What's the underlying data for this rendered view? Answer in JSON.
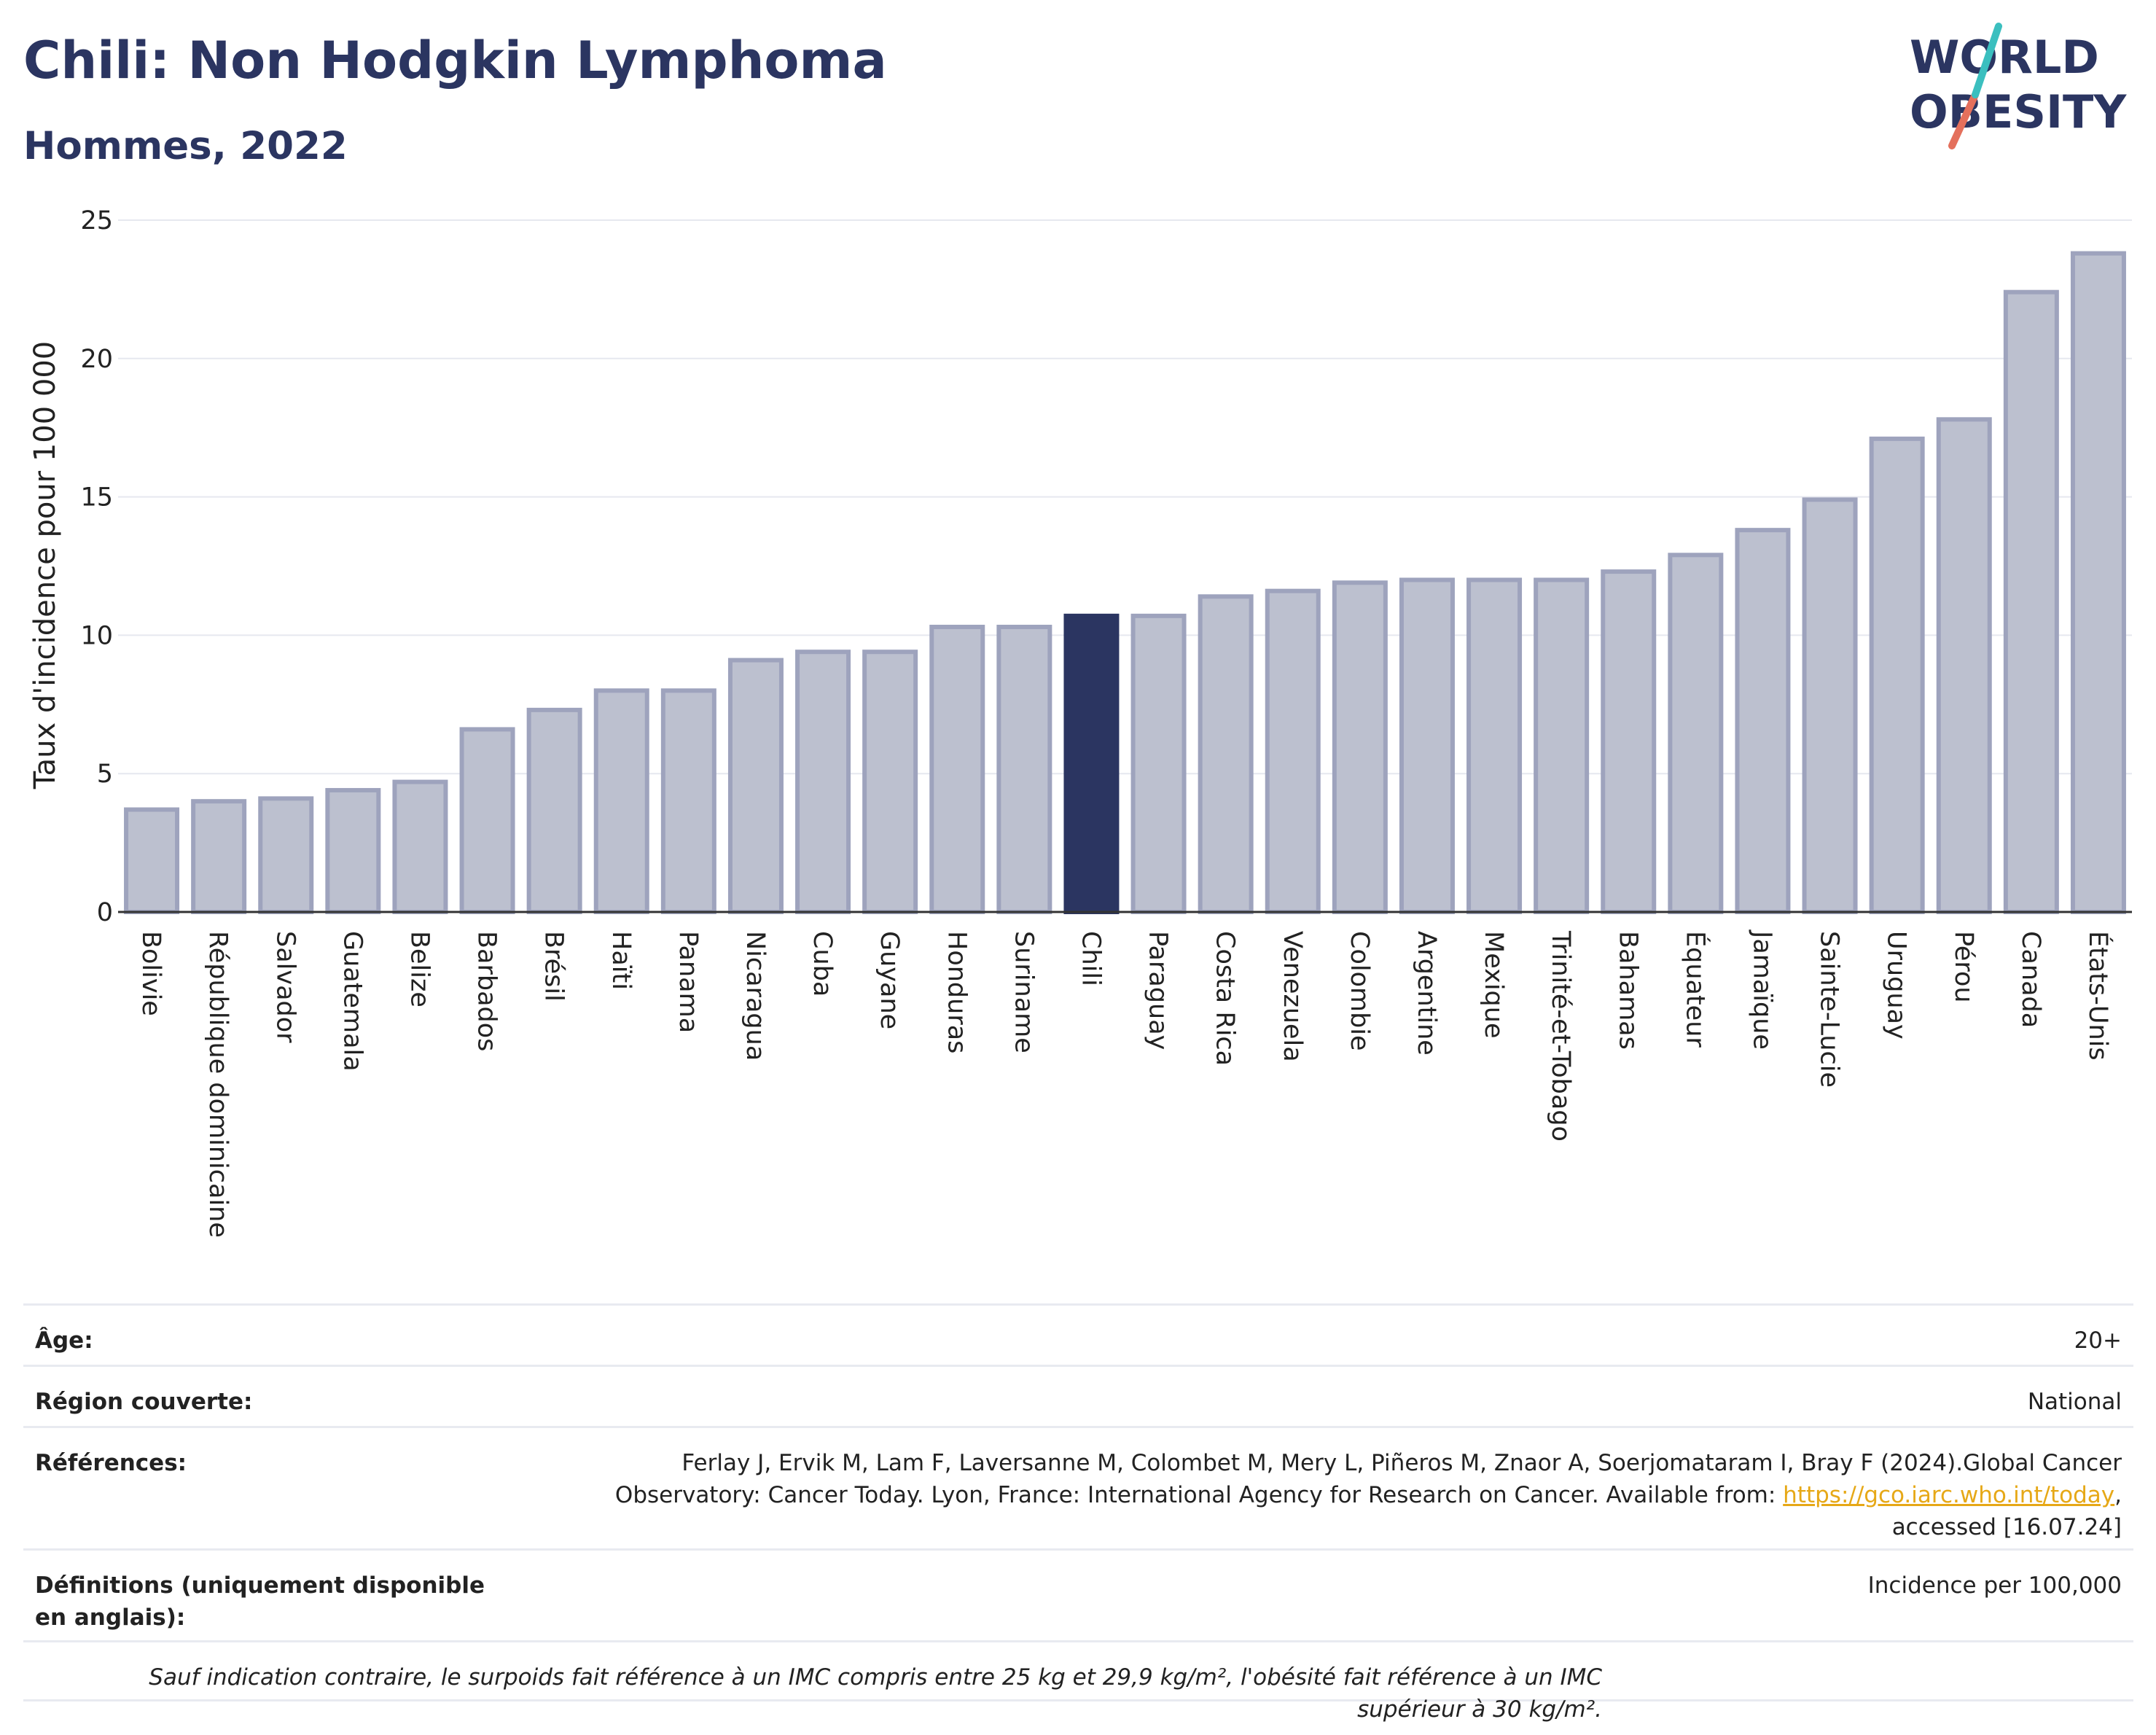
{
  "header": {
    "title": "Chili: Non Hodgkin Lymphoma",
    "subtitle": "Hommes, 2022"
  },
  "logo": {
    "line1": "WORLD",
    "line2": "OBESITY"
  },
  "chart_data": {
    "type": "bar",
    "ylabel": "Taux d'incidence pour 100 000",
    "ylim": [
      0,
      25
    ],
    "yticks": [
      0,
      5,
      10,
      15,
      20,
      25
    ],
    "grid": true,
    "highlight": "Chili",
    "colors": {
      "bar": "#bcc0cf",
      "bar_border": "#9ea3bd",
      "highlight": "#2b3561"
    },
    "categories": [
      "Bolivie",
      "République dominicaine",
      "Salvador",
      "Guatemala",
      "Belize",
      "Barbados",
      "Brésil",
      "Haïti",
      "Panama",
      "Nicaragua",
      "Cuba",
      "Guyane",
      "Honduras",
      "Suriname",
      "Chili",
      "Paraguay",
      "Costa Rica",
      "Venezuela",
      "Colombie",
      "Argentine",
      "Mexique",
      "Trinité-et-Tobago",
      "Bahamas",
      "Équateur",
      "Jamaïque",
      "Sainte-Lucie",
      "Uruguay",
      "Pérou",
      "Canada",
      "États-Unis"
    ],
    "values": [
      3.7,
      4.0,
      4.1,
      4.4,
      4.7,
      6.6,
      7.3,
      8.0,
      8.0,
      9.1,
      9.4,
      9.4,
      10.3,
      10.3,
      10.7,
      10.7,
      11.4,
      11.6,
      11.9,
      12.0,
      12.0,
      12.0,
      12.3,
      12.9,
      13.8,
      14.9,
      17.1,
      17.8,
      22.4,
      23.8
    ]
  },
  "info": {
    "age_label": "Âge:",
    "age_value": "20+",
    "region_label": "Région couverte:",
    "region_value": "National",
    "refs_label": "Références:",
    "refs_text_1": "Ferlay J, Ervik M, Lam F, Laversanne M, Colombet M, Mery L, Piñeros M, Znaor A, Soerjomataram I, Bray F (2024).Global Cancer Observatory: Cancer Today. Lyon, France: International Agency for Research on Cancer. Available from: ",
    "refs_link": "https://gco.iarc.who.int/today",
    "refs_text_2": ", accessed [16.07.24]",
    "defs_label": "Définitions (uniquement disponible en anglais):",
    "defs_value": "Incidence per 100,000",
    "note": "Sauf indication contraire, le surpoids fait référence à un IMC compris entre 25 kg et 29,9 kg/m², l'obésité fait référence à un IMC supérieur à 30 kg/m²."
  }
}
